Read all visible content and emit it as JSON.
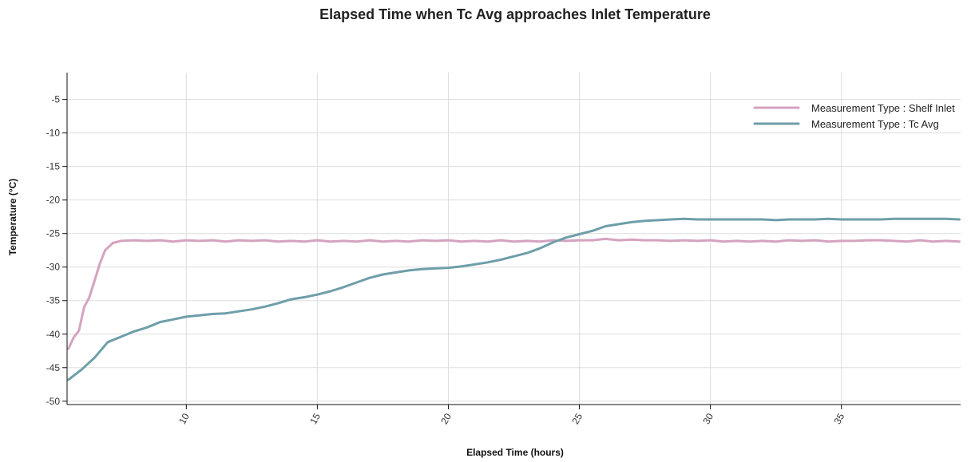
{
  "chart_data": {
    "type": "line",
    "title": "Elapsed Time when Tc Avg approaches Inlet Temperature",
    "xlabel": "Elapsed Time (hours)",
    "ylabel": "Temperature (°C)",
    "xlim": [
      5.45,
      39.55
    ],
    "ylim": [
      -50.5,
      -1
    ],
    "x_ticks": [
      10,
      15,
      20,
      25,
      30,
      35
    ],
    "y_ticks": [
      -5,
      -10,
      -15,
      -20,
      -25,
      -30,
      -35,
      -40,
      -45,
      -50
    ],
    "grid": true,
    "legend_position": "top-right",
    "series": [
      {
        "name": "Measurement Type : Shelf Inlet",
        "color": "#d4a3bf",
        "x": [
          5.5,
          5.7,
          5.9,
          6.1,
          6.3,
          6.5,
          6.7,
          6.9,
          7.2,
          7.5,
          8,
          8.5,
          9,
          9.5,
          10,
          10.5,
          11,
          11.5,
          12,
          12.5,
          13,
          13.5,
          14,
          14.5,
          15,
          15.5,
          16,
          16.5,
          17,
          17.5,
          18,
          18.5,
          19,
          19.5,
          20,
          20.5,
          21,
          21.5,
          22,
          22.5,
          23,
          23.5,
          24,
          24.5,
          25,
          25.5,
          26,
          26.5,
          27,
          27.5,
          28,
          28.5,
          29,
          29.5,
          30,
          30.5,
          31,
          31.5,
          32,
          32.5,
          33,
          33.5,
          34,
          34.5,
          35,
          35.5,
          36,
          36.5,
          37,
          37.5,
          38,
          38.5,
          39,
          39.5
        ],
        "values": [
          -42.2,
          -40.5,
          -39.5,
          -36,
          -34.5,
          -32,
          -29.5,
          -27.5,
          -26.4,
          -26.1,
          -26,
          -26.1,
          -26,
          -26.2,
          -26,
          -26.1,
          -26,
          -26.2,
          -26,
          -26.1,
          -26,
          -26.2,
          -26.1,
          -26.2,
          -26,
          -26.2,
          -26.1,
          -26.2,
          -26,
          -26.2,
          -26.1,
          -26.2,
          -26,
          -26.1,
          -26,
          -26.2,
          -26.1,
          -26.2,
          -26,
          -26.2,
          -26.1,
          -26.2,
          -26,
          -26.1,
          -26,
          -26,
          -25.8,
          -26,
          -25.9,
          -26,
          -26,
          -26.1,
          -26,
          -26.1,
          -26,
          -26.2,
          -26.1,
          -26.2,
          -26.1,
          -26.2,
          -26,
          -26.1,
          -26,
          -26.2,
          -26.1,
          -26.1,
          -26,
          -26,
          -26.1,
          -26.2,
          -26,
          -26.2,
          -26.1,
          -26.2
        ]
      },
      {
        "name": "Measurement Type : Tc Avg",
        "color": "#6e9ea9",
        "x": [
          5.5,
          6,
          6.5,
          7,
          7.5,
          8,
          8.5,
          9,
          9.5,
          10,
          10.5,
          11,
          11.5,
          12,
          12.5,
          13,
          13.5,
          14,
          14.5,
          15,
          15.5,
          16,
          16.5,
          17,
          17.5,
          18,
          18.5,
          19,
          19.5,
          20,
          20.5,
          21,
          21.5,
          22,
          22.5,
          23,
          23.5,
          24,
          24.5,
          25,
          25.5,
          26,
          26.5,
          27,
          27.5,
          28,
          28.5,
          29,
          29.5,
          30,
          30.5,
          31,
          31.5,
          32,
          32.5,
          33,
          33.5,
          34,
          34.5,
          35,
          35.5,
          36,
          36.5,
          37,
          37.5,
          38,
          38.5,
          39,
          39.5
        ],
        "values": [
          -46.8,
          -45.3,
          -43.5,
          -41.2,
          -40.4,
          -39.6,
          -39,
          -38.2,
          -37.8,
          -37.4,
          -37.2,
          -37,
          -36.9,
          -36.6,
          -36.3,
          -35.9,
          -35.4,
          -34.8,
          -34.5,
          -34.1,
          -33.6,
          -33,
          -32.3,
          -31.6,
          -31.1,
          -30.8,
          -30.5,
          -30.3,
          -30.2,
          -30.1,
          -29.9,
          -29.6,
          -29.3,
          -28.9,
          -28.4,
          -27.9,
          -27.2,
          -26.3,
          -25.6,
          -25.1,
          -24.6,
          -23.9,
          -23.6,
          -23.3,
          -23.1,
          -23,
          -22.9,
          -22.8,
          -22.9,
          -22.9,
          -22.9,
          -22.9,
          -22.9,
          -22.9,
          -23,
          -22.9,
          -22.9,
          -22.9,
          -22.8,
          -22.9,
          -22.9,
          -22.9,
          -22.9,
          -22.8,
          -22.8,
          -22.8,
          -22.8,
          -22.8,
          -22.9
        ]
      }
    ]
  }
}
